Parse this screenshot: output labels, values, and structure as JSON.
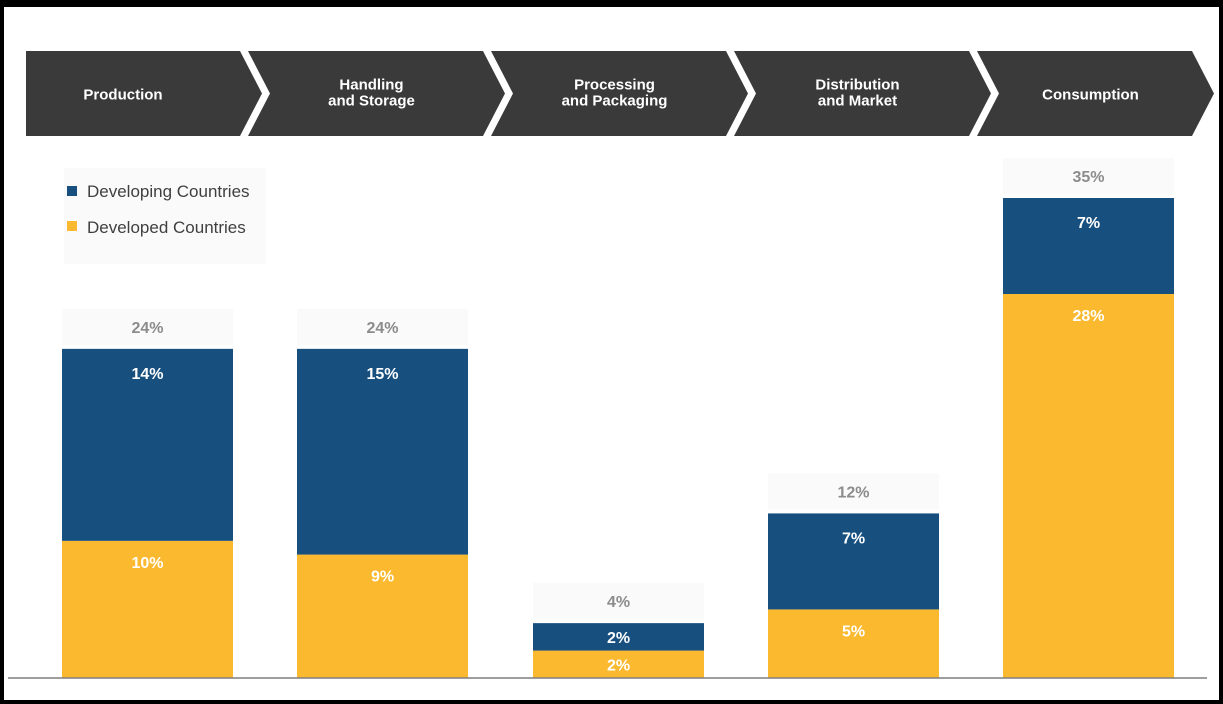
{
  "stages": [
    {
      "line1": "Production",
      "line2": ""
    },
    {
      "line1": "Handling",
      "line2": "and Storage"
    },
    {
      "line1": "Processing",
      "line2": "and Packaging"
    },
    {
      "line1": "Distribution",
      "line2": "and Market"
    },
    {
      "line1": "Consumption",
      "line2": ""
    }
  ],
  "legend": {
    "developing": "Developing Countries",
    "developed": "Developed Countries"
  },
  "colors": {
    "developing": "#174f7f",
    "developed": "#fbb92f",
    "stage_band": "#3a3a3a",
    "total_label": "#8c8c8c",
    "axis": "#7f7f7f"
  },
  "chart_data": {
    "type": "bar",
    "stacked": true,
    "categories": [
      "Production",
      "Handling and Storage",
      "Processing and Packaging",
      "Distribution and Market",
      "Consumption"
    ],
    "series": [
      {
        "name": "Developed Countries",
        "values": [
          10,
          9,
          2,
          5,
          28
        ],
        "labels": [
          "10%",
          "9%",
          "2%",
          "5%",
          "28%"
        ]
      },
      {
        "name": "Developing Countries",
        "values": [
          14,
          15,
          2,
          7,
          7
        ],
        "labels": [
          "14%",
          "15%",
          "2%",
          "7%",
          "7%"
        ]
      }
    ],
    "totals": [
      24,
      24,
      4,
      12,
      35
    ],
    "total_labels": [
      "24%",
      "24%",
      "4%",
      "12%",
      "35%"
    ],
    "ylim": [
      0,
      35
    ],
    "grid": false,
    "legend_position": "top-left"
  }
}
